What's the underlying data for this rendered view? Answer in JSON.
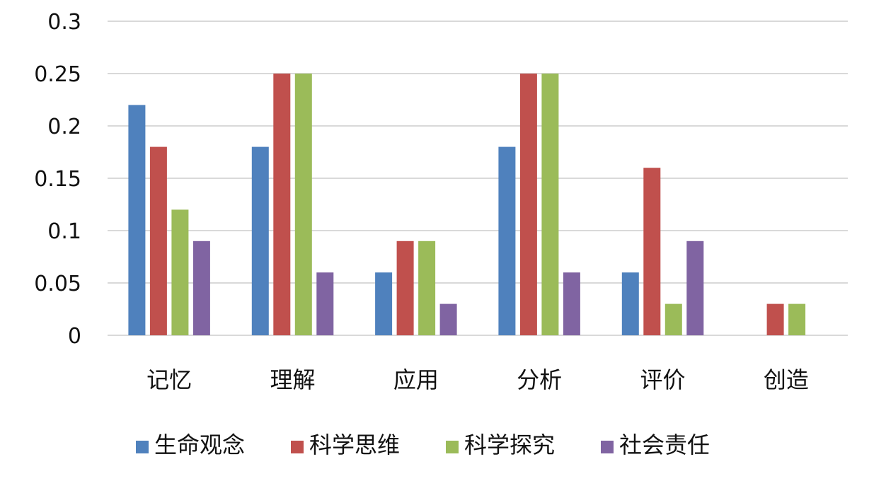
{
  "chart_data": {
    "type": "bar",
    "title": "",
    "xlabel": "",
    "ylabel": "",
    "categories": [
      "记忆",
      "理解",
      "应用",
      "分析",
      "评价",
      "创造"
    ],
    "ylim": [
      0,
      0.3
    ],
    "yticks": [
      "0",
      "0.05",
      "0.1",
      "0.15",
      "0.2",
      "0.25",
      "0.3"
    ],
    "grid": true,
    "legend_position": "bottom",
    "series": [
      {
        "name": "生命观念",
        "color": "#4f81bd",
        "values": [
          0.22,
          0.18,
          0.06,
          0.18,
          0.06,
          0
        ]
      },
      {
        "name": "科学思维",
        "color": "#c0504d",
        "values": [
          0.18,
          0.25,
          0.09,
          0.25,
          0.16,
          0.03
        ]
      },
      {
        "name": "科学探究",
        "color": "#9bbb59",
        "values": [
          0.12,
          0.25,
          0.09,
          0.25,
          0.03,
          0.03
        ]
      },
      {
        "name": "社会责任",
        "color": "#8064a2",
        "values": [
          0.09,
          0.06,
          0.03,
          0.06,
          0.09,
          0
        ]
      }
    ]
  }
}
